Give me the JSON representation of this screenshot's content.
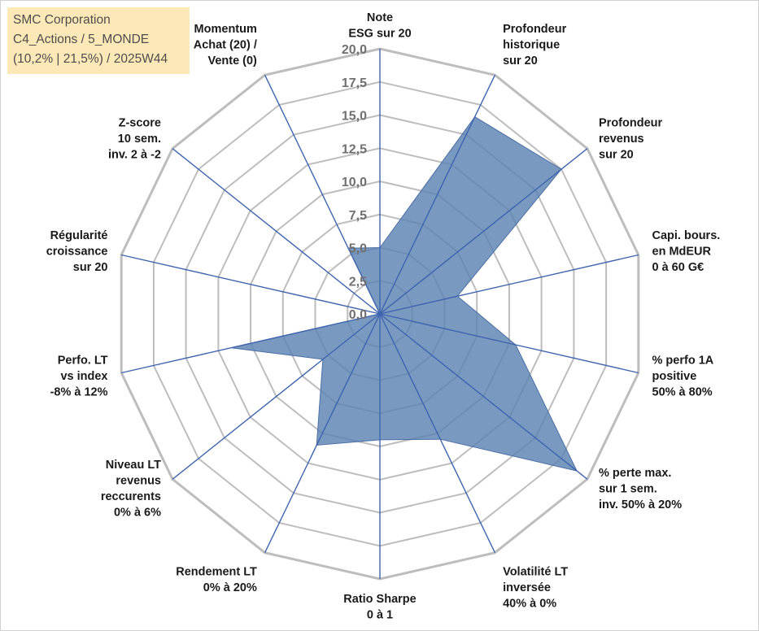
{
  "info": {
    "company": "SMC Corporation",
    "line2": "C4_Actions / 5_MONDE",
    "line3": "(10,2% | 21,5%) / 2025W44"
  },
  "colors": {
    "area_fill": "#5b82b3",
    "area_stroke": "#4a6fa5",
    "spoke": "#3f64ae",
    "ring": "#bdbdbd",
    "info_bg": "#fde9b8"
  },
  "chart_data": {
    "type": "radar",
    "rmin": 0,
    "rmax": 20,
    "tick_step": 2.5,
    "tick_labels": [
      "0,0",
      "2,5",
      "5,0",
      "7,5",
      "10,0",
      "12,5",
      "15,0",
      "17,5",
      "20,0"
    ],
    "axes": [
      [
        "Note",
        "ESG sur 20"
      ],
      [
        "Profondeur",
        "historique",
        "sur 20"
      ],
      [
        "Profondeur",
        "revenus",
        "sur 20"
      ],
      [
        "Capi. bours.",
        "en MdEUR",
        "0 à 60 G€"
      ],
      [
        "% perfo 1A",
        "positive",
        "50% à 80%"
      ],
      [
        "% perte max.",
        "sur 1 sem.",
        "inv. 50% à 20%"
      ],
      [
        "Volatilité LT",
        "inversée",
        "40% à 0%"
      ],
      [
        "Ratio Sharpe",
        "0 à 1"
      ],
      [
        "Rendement LT",
        "0% à 20%"
      ],
      [
        "Niveau LT",
        "revenus",
        "reccurents",
        "0% à 6%"
      ],
      [
        "Perfo. LT",
        "vs index",
        "-8% à 12%"
      ],
      [
        "Régularité",
        "croissance",
        "sur 20"
      ],
      [
        "Z-score",
        "10 sem.",
        "inv. 2 à -2"
      ],
      [
        "Momentum",
        "Achat (20) /",
        "Vente (0)"
      ]
    ],
    "values": [
      5.0,
      16.5,
      17.5,
      6.0,
      10.5,
      19.0,
      10.5,
      9.5,
      11.0,
      5.5,
      11.5,
      0.0,
      0.0,
      5.5
    ],
    "grid": true,
    "legend": "none"
  }
}
